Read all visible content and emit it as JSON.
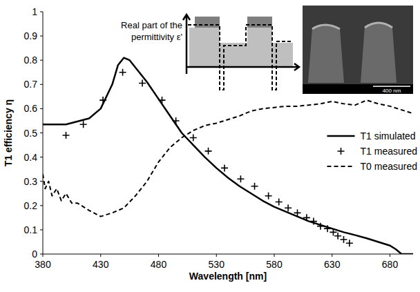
{
  "chart_data": {
    "type": "line",
    "x_label": "Wavelength [nm]",
    "y_label": "T1 efficiency η",
    "annotations": [
      "Real part of the",
      "permittivity ε'",
      "400 nm"
    ],
    "xlim": [
      380,
      700
    ],
    "xticks": [
      380,
      430,
      480,
      530,
      580,
      630,
      680
    ],
    "ylim": [
      0,
      1
    ],
    "yticks": [
      0,
      0.1,
      0.2,
      0.3,
      0.4,
      0.5,
      0.6,
      0.7,
      0.8,
      0.9,
      1
    ],
    "grid": false,
    "legend": "right",
    "series": [
      {
        "name": "T1 simulated",
        "type": "line",
        "color": "#000000",
        "line_style": "solid",
        "marker": "none",
        "x": [
          380,
          400,
          420,
          430,
          440,
          445,
          450,
          455,
          460,
          470,
          480,
          490,
          500,
          510,
          520,
          530,
          540,
          550,
          560,
          570,
          580,
          590,
          600,
          610,
          620,
          630,
          640,
          650,
          660,
          670,
          680,
          685,
          690,
          700
        ],
        "values": [
          0.535,
          0.535,
          0.56,
          0.6,
          0.7,
          0.78,
          0.81,
          0.8,
          0.77,
          0.71,
          0.64,
          0.57,
          0.5,
          0.45,
          0.4,
          0.355,
          0.315,
          0.28,
          0.25,
          0.22,
          0.195,
          0.175,
          0.155,
          0.135,
          0.12,
          0.105,
          0.09,
          0.078,
          0.065,
          0.05,
          0.035,
          0.02,
          0.0,
          0.0
        ]
      },
      {
        "name": "T1 measured",
        "type": "scatter",
        "color": "#000000",
        "marker": "plus",
        "x": [
          400,
          415,
          432,
          449,
          466,
          483,
          495,
          510,
          523,
          537,
          551,
          563,
          575,
          584,
          592,
          600,
          608,
          614,
          620,
          626,
          631,
          635,
          640,
          645
        ],
        "values": [
          0.49,
          0.535,
          0.635,
          0.75,
          0.705,
          0.635,
          0.55,
          0.48,
          0.425,
          0.355,
          0.31,
          0.28,
          0.24,
          0.215,
          0.19,
          0.17,
          0.15,
          0.135,
          0.115,
          0.105,
          0.09,
          0.075,
          0.06,
          0.045
        ]
      },
      {
        "name": "T0 measured",
        "type": "line",
        "color": "#000000",
        "line_style": "dashed",
        "marker": "none",
        "x": [
          380,
          382,
          385,
          388,
          392,
          396,
          400,
          405,
          410,
          420,
          430,
          440,
          450,
          460,
          470,
          480,
          490,
          500,
          510,
          520,
          530,
          540,
          550,
          560,
          570,
          580,
          590,
          600,
          610,
          620,
          630,
          640,
          650,
          660,
          670,
          680,
          690,
          700
        ],
        "values": [
          0.33,
          0.27,
          0.3,
          0.24,
          0.27,
          0.22,
          0.25,
          0.21,
          0.21,
          0.18,
          0.155,
          0.17,
          0.19,
          0.24,
          0.3,
          0.38,
          0.44,
          0.48,
          0.51,
          0.53,
          0.54,
          0.555,
          0.57,
          0.59,
          0.6,
          0.605,
          0.61,
          0.61,
          0.615,
          0.62,
          0.63,
          0.62,
          0.615,
          0.635,
          0.62,
          0.61,
          0.595,
          0.58
        ]
      }
    ]
  }
}
